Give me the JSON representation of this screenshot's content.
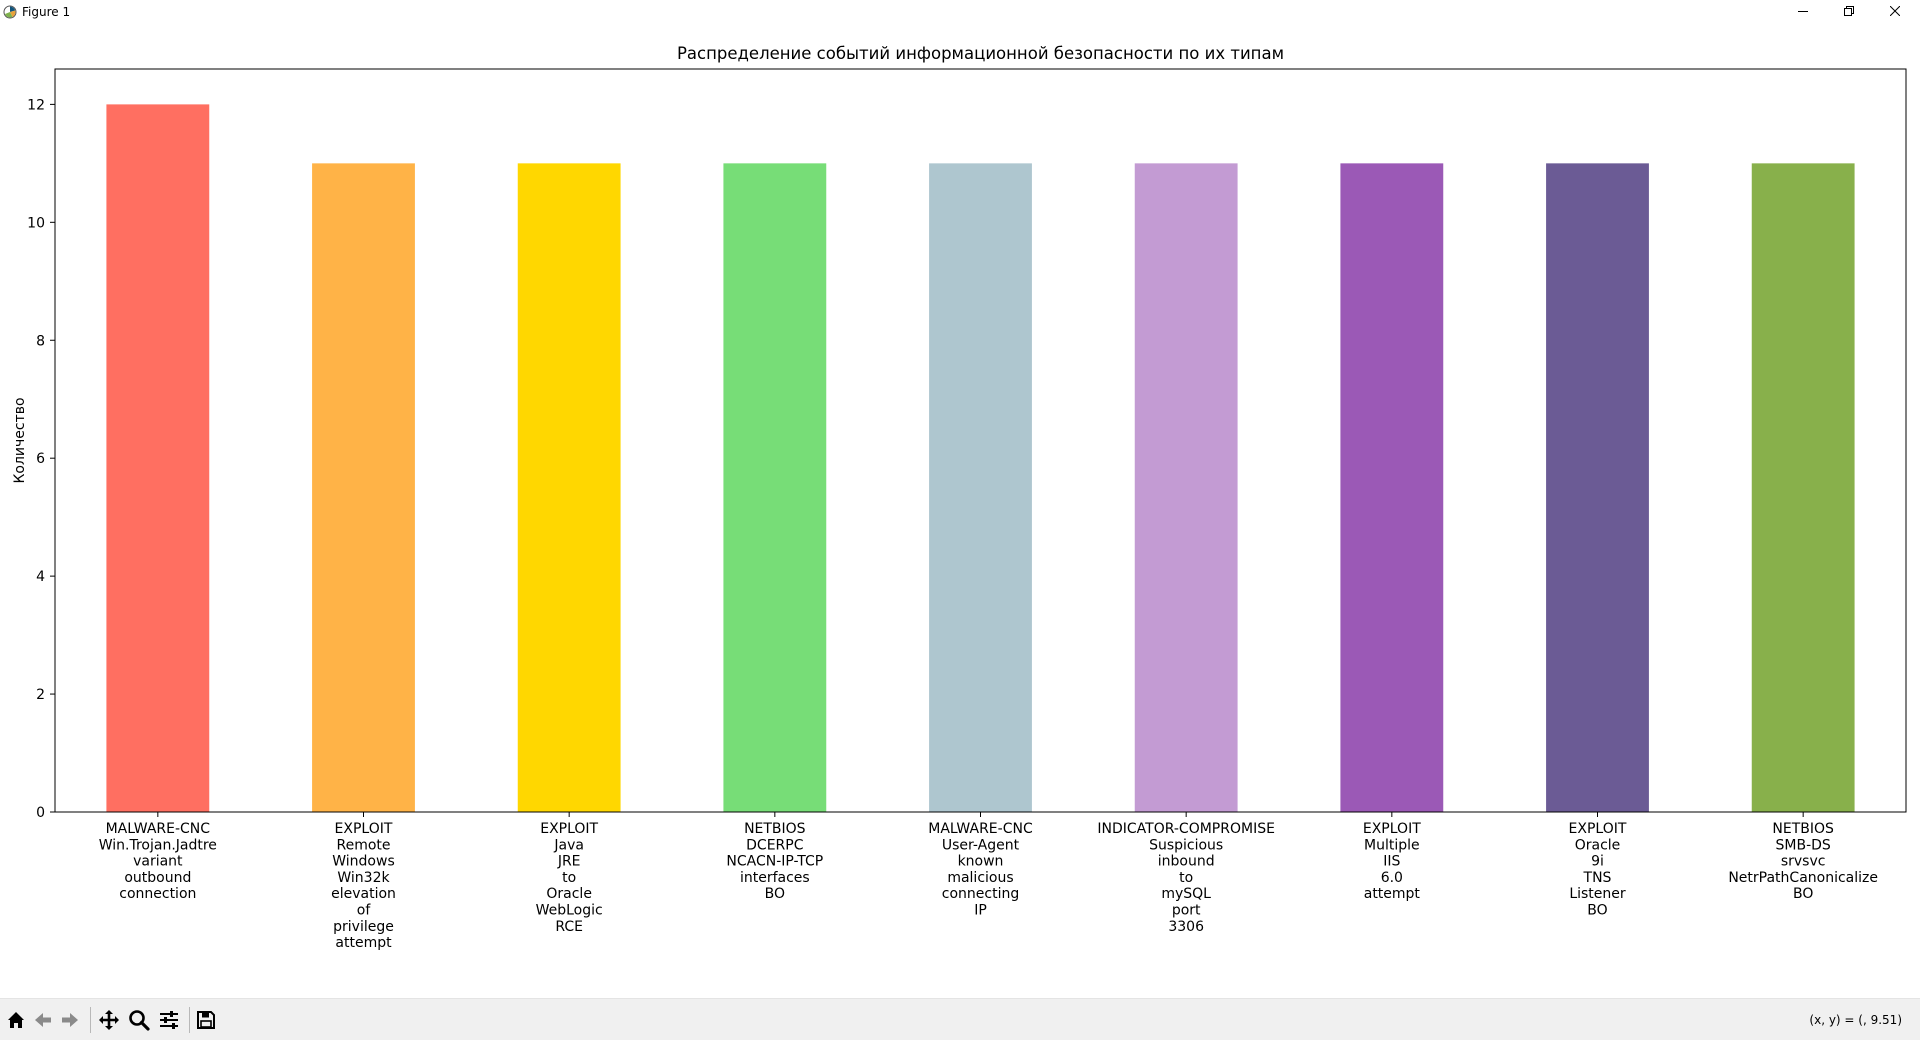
{
  "window": {
    "title": "Figure 1"
  },
  "toolbar": {
    "coords_readout": "(x, y) = (, 9.51)"
  },
  "chart_data": {
    "type": "bar",
    "title": "Распределение событий информационной безопасности по их типам",
    "xlabel": "",
    "ylabel": "Количество",
    "ylim": [
      0,
      12.6
    ],
    "yticks": [
      0,
      2,
      4,
      6,
      8,
      10,
      12
    ],
    "grid": false,
    "categories": [
      [
        "MALWARE-CNC",
        "Win.Trojan.Jadtre",
        "variant",
        "outbound",
        "connection"
      ],
      [
        "EXPLOIT",
        "Remote",
        "Windows",
        "Win32k",
        "elevation",
        "of",
        "privilege",
        "attempt"
      ],
      [
        "EXPLOIT",
        "Java",
        "JRE",
        "to",
        "Oracle",
        "WebLogic",
        "RCE"
      ],
      [
        "NETBIOS",
        "DCERPC",
        "NCACN-IP-TCP",
        "interfaces",
        "BO"
      ],
      [
        "MALWARE-CNC",
        "User-Agent",
        "known",
        "malicious",
        "connecting",
        "IP"
      ],
      [
        "INDICATOR-COMPROMISE",
        "Suspicious",
        "inbound",
        "to",
        "mySQL",
        "port",
        "3306"
      ],
      [
        "EXPLOIT",
        "Multiple",
        "IIS",
        "6.0",
        "attempt"
      ],
      [
        "EXPLOIT",
        "Oracle",
        "9i",
        "TNS",
        "Listener",
        "BO"
      ],
      [
        "NETBIOS",
        "SMB-DS",
        "srvsvc",
        "NetrPathCanonicalize",
        "BO"
      ]
    ],
    "values": [
      12,
      11,
      11,
      11,
      11,
      11,
      11,
      11,
      11
    ],
    "colors": [
      "#ff6f61",
      "#ffb347",
      "#ffd700",
      "#77dd77",
      "#aec6cf",
      "#c39bd3",
      "#9b59b6",
      "#6b5b95",
      "#88b04b"
    ]
  }
}
